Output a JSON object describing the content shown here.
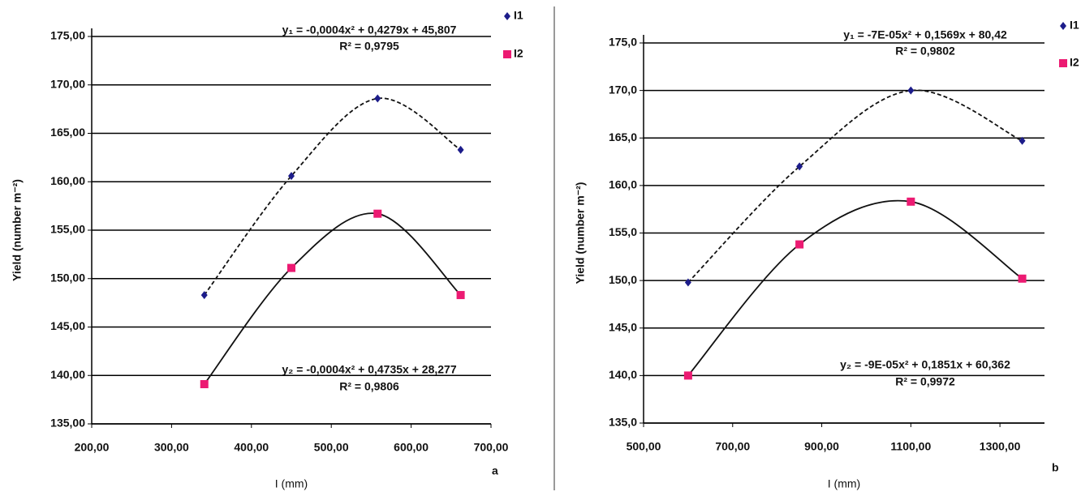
{
  "chart_data": [
    {
      "type": "scatter",
      "panel": "a",
      "x_label": "I (mm)",
      "y_label": "Yield (number m⁻²)",
      "xlim": [
        200,
        700
      ],
      "ylim": [
        135,
        175
      ],
      "xticks": [
        {
          "value": 200,
          "label": "200,00"
        },
        {
          "value": 300,
          "label": "300,00"
        },
        {
          "value": 400,
          "label": "400,00"
        },
        {
          "value": 500,
          "label": "500,00"
        },
        {
          "value": 600,
          "label": "600,00"
        },
        {
          "value": 700,
          "label": "700,00"
        }
      ],
      "yticks": [
        {
          "value": 135,
          "label": "135,00"
        },
        {
          "value": 140,
          "label": "140,00"
        },
        {
          "value": 145,
          "label": "145,00"
        },
        {
          "value": 150,
          "label": "150,00"
        },
        {
          "value": 155,
          "label": "155,00"
        },
        {
          "value": 160,
          "label": "160,00"
        },
        {
          "value": 165,
          "label": "165,00"
        },
        {
          "value": 170,
          "label": "170,00"
        },
        {
          "value": 175,
          "label": "175,00"
        }
      ],
      "grid": true,
      "series": [
        {
          "name": "I1",
          "color": "#1c1c8a",
          "marker": "diamond",
          "trendline": "dashed",
          "x": [
            341,
            450,
            558,
            662
          ],
          "values": [
            148.3,
            160.6,
            168.6,
            163.3
          ]
        },
        {
          "name": "I2",
          "color": "#ec1a72",
          "marker": "square",
          "trendline": "solid",
          "x": [
            341,
            450,
            558,
            662
          ],
          "values": [
            139.1,
            151.1,
            156.7,
            148.3
          ]
        }
      ],
      "annotations": [
        "y₁ = -0,0004x² + 0,4279x + 45,807",
        "R² = 0,9795",
        "y₂ = -0,0004x² + 0,4735x + 28,277",
        "R² = 0,9806"
      ]
    },
    {
      "type": "scatter",
      "panel": "b",
      "x_label": "I (mm)",
      "y_label": "Yield (number m⁻²)",
      "xlim": [
        500,
        1400
      ],
      "ylim": [
        135,
        175
      ],
      "xticks": [
        {
          "value": 500,
          "label": "500,00"
        },
        {
          "value": 700,
          "label": "700,00"
        },
        {
          "value": 900,
          "label": "900,00"
        },
        {
          "value": 1100,
          "label": "1100,00"
        },
        {
          "value": 1300,
          "label": "1300,00"
        }
      ],
      "yticks": [
        {
          "value": 135,
          "label": "135,0"
        },
        {
          "value": 140,
          "label": "140,0"
        },
        {
          "value": 145,
          "label": "145,0"
        },
        {
          "value": 150,
          "label": "150,0"
        },
        {
          "value": 155,
          "label": "155,0"
        },
        {
          "value": 160,
          "label": "160,0"
        },
        {
          "value": 165,
          "label": "165,0"
        },
        {
          "value": 170,
          "label": "170,0"
        },
        {
          "value": 175,
          "label": "175,0"
        }
      ],
      "grid": true,
      "series": [
        {
          "name": "I1",
          "color": "#1c1c8a",
          "marker": "diamond",
          "trendline": "dashed",
          "x": [
            600,
            850,
            1100,
            1350
          ],
          "values": [
            149.8,
            162,
            170,
            164.7
          ]
        },
        {
          "name": "I2",
          "color": "#ec1a72",
          "marker": "square",
          "trendline": "solid",
          "x": [
            600,
            850,
            1100,
            1350
          ],
          "values": [
            140,
            153.8,
            158.3,
            150.2
          ]
        }
      ],
      "annotations": [
        "y₁ = -7E-05x² + 0,1569x + 80,42",
        "R² = 0,9802",
        "y₂ = -9E-05x² + 0,1851x + 60,362",
        "R² = 0,9972"
      ]
    }
  ]
}
